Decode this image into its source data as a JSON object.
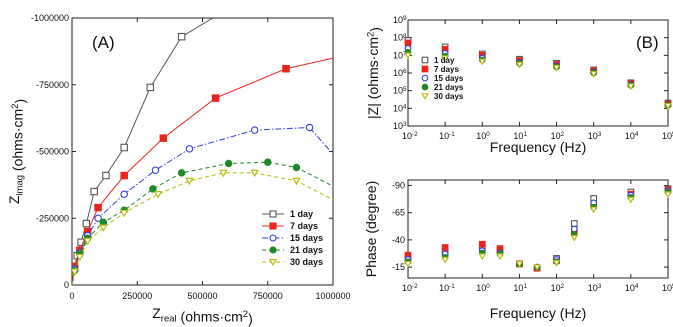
{
  "chart_data": [
    {
      "panel": "A",
      "type": "scatter",
      "panel_label": "(A)",
      "xlabel": {
        "main": "Z",
        "sub": "real",
        "unit": " (ohms·cm",
        "sup": "2",
        "close": ")"
      },
      "ylabel": {
        "main": "Z",
        "sub": "imag",
        "unit": " (ohms·cm",
        "sup": "2",
        "close": ")"
      },
      "xlim": [
        0,
        1000000
      ],
      "ylim": [
        0,
        -1000000
      ],
      "x_ticks": [
        0,
        250000,
        500000,
        750000,
        1000000
      ],
      "x_tick_labels": [
        "0",
        "250000",
        "500000",
        "750000",
        "1000000"
      ],
      "y_ticks": [
        0,
        -250000,
        -500000,
        -750000,
        -1000000
      ],
      "y_tick_labels": [
        "0",
        "-250000",
        "-500000",
        "-750000",
        "-1000000"
      ],
      "legend_position": "lower-right",
      "series": [
        {
          "name": "1 day",
          "color": "#555555",
          "marker": "square-open",
          "line": "solid",
          "x": [
            0,
            10000,
            20000,
            35000,
            55000,
            85000,
            130000,
            200000,
            300000,
            420000,
            540000
          ],
          "y": [
            0,
            -65000,
            -110000,
            -160000,
            -230000,
            -350000,
            -410000,
            -515000,
            -740000,
            -930000,
            -1000000
          ]
        },
        {
          "name": "7 days",
          "color": "#e8251c",
          "marker": "square-filled",
          "line": "solid",
          "x": [
            0,
            10000,
            30000,
            60000,
            100000,
            200000,
            350000,
            550000,
            820000,
            1000000
          ],
          "y": [
            0,
            -70000,
            -130000,
            -200000,
            -290000,
            -410000,
            -550000,
            -700000,
            -810000,
            -850000
          ]
        },
        {
          "name": "15 days",
          "color": "#3340e0",
          "marker": "circle-open",
          "line": "dashdot",
          "x": [
            0,
            10000,
            30000,
            60000,
            100000,
            200000,
            320000,
            450000,
            700000,
            910000,
            1000000
          ],
          "y": [
            0,
            -60000,
            -120000,
            -185000,
            -250000,
            -340000,
            -430000,
            -510000,
            -580000,
            -590000,
            -490000
          ]
        },
        {
          "name": "21 days",
          "color": "#1c8a28",
          "marker": "circle-filled",
          "line": "dashed",
          "x": [
            0,
            10000,
            30000,
            60000,
            120000,
            200000,
            310000,
            420000,
            600000,
            750000,
            860000,
            1000000
          ],
          "y": [
            0,
            -55000,
            -115000,
            -175000,
            -235000,
            -280000,
            -360000,
            -420000,
            -455000,
            -460000,
            -440000,
            -370000
          ]
        },
        {
          "name": "30 days",
          "color": "#b8b800",
          "marker": "triangle-open",
          "line": "dashed",
          "x": [
            0,
            10000,
            30000,
            60000,
            120000,
            200000,
            330000,
            450000,
            580000,
            700000,
            860000,
            1000000
          ],
          "y": [
            0,
            -50000,
            -105000,
            -165000,
            -215000,
            -270000,
            -340000,
            -390000,
            -420000,
            -420000,
            -390000,
            -320000
          ]
        }
      ]
    },
    {
      "panel": "B-top",
      "type": "scatter",
      "panel_label": "(B)",
      "xlabel": "Frequency (Hz)",
      "ylabel": {
        "main": "|Z| (ohms·cm",
        "sup": "2",
        "close": ")"
      },
      "x_scale": "log",
      "y_scale": "log",
      "xlim": [
        0.01,
        100000
      ],
      "ylim": [
        1000,
        1000000000
      ],
      "x_ticks": [
        0.01,
        0.1,
        1,
        10,
        100,
        1000,
        10000,
        100000
      ],
      "x_tick_labels": [
        {
          "b": "10",
          "e": "-2"
        },
        {
          "b": "10",
          "e": "-1"
        },
        {
          "b": "10",
          "e": "0"
        },
        {
          "b": "10",
          "e": "1"
        },
        {
          "b": "10",
          "e": "2"
        },
        {
          "b": "10",
          "e": "3"
        },
        {
          "b": "10",
          "e": "4"
        },
        {
          "b": "10",
          "e": "5"
        }
      ],
      "y_ticks": [
        1000,
        10000,
        100000,
        1000000,
        10000000,
        100000000,
        1000000000
      ],
      "y_tick_labels": [
        {
          "b": "10",
          "e": "3"
        },
        {
          "b": "10",
          "e": "4"
        },
        {
          "b": "10",
          "e": "5"
        },
        {
          "b": "10",
          "e": "6"
        },
        {
          "b": "10",
          "e": "7"
        },
        {
          "b": "10",
          "e": "8"
        },
        {
          "b": "10",
          "e": "9"
        }
      ],
      "legend_position": "left-middle",
      "series": [
        {
          "name": "1 day",
          "color": "#555555",
          "marker": "square-open",
          "x": [
            0.01,
            0.1,
            1,
            10,
            100,
            1000,
            10000,
            100000
          ],
          "y": [
            70000000,
            30000000,
            12000000,
            6000000,
            3500000,
            1500000,
            280000,
            20000
          ]
        },
        {
          "name": "7 days",
          "color": "#e8251c",
          "marker": "square-filled",
          "x": [
            0.01,
            0.1,
            1,
            10,
            100,
            1000,
            10000,
            100000
          ],
          "y": [
            50000000,
            22000000,
            10000000,
            5000000,
            3000000,
            1300000,
            250000,
            18000
          ]
        },
        {
          "name": "15 days",
          "color": "#3340e0",
          "marker": "circle-open",
          "x": [
            0.01,
            0.1,
            1,
            10,
            100,
            1000,
            10000,
            100000
          ],
          "y": [
            25000000,
            13000000,
            7000000,
            4000000,
            2500000,
            1100000,
            220000,
            16000
          ]
        },
        {
          "name": "21 days",
          "color": "#1c8a28",
          "marker": "circle-filled",
          "x": [
            0.01,
            0.1,
            1,
            10,
            100,
            1000,
            10000,
            100000
          ],
          "y": [
            15000000,
            9000000,
            5500000,
            3500000,
            2200000,
            1000000,
            200000,
            15000
          ]
        },
        {
          "name": "30 days",
          "color": "#b8b800",
          "marker": "triangle-open",
          "x": [
            0.01,
            0.1,
            1,
            10,
            100,
            1000,
            10000,
            100000
          ],
          "y": [
            10000000,
            7000000,
            4500000,
            3000000,
            2000000,
            900000,
            180000,
            14000
          ]
        }
      ]
    },
    {
      "panel": "B-bottom",
      "type": "scatter",
      "xlabel": "Frequency (Hz)",
      "ylabel": "Phase (degree)",
      "x_scale": "log",
      "xlim": [
        0.01,
        100000
      ],
      "ylim": [
        0,
        -90
      ],
      "x_ticks": [
        0.01,
        0.1,
        1,
        10,
        100,
        1000,
        10000,
        100000
      ],
      "x_tick_labels": [
        {
          "b": "10",
          "e": "-2"
        },
        {
          "b": "10",
          "e": "-1"
        },
        {
          "b": "10",
          "e": "0"
        },
        {
          "b": "10",
          "e": "1"
        },
        {
          "b": "10",
          "e": "2"
        },
        {
          "b": "10",
          "e": "3"
        },
        {
          "b": "10",
          "e": "4"
        },
        {
          "b": "10",
          "e": "5"
        }
      ],
      "y_ticks": [
        -15,
        -40,
        -65,
        -90
      ],
      "y_tick_labels": [
        "-15",
        "-40",
        "-65",
        "-90"
      ],
      "series": [
        {
          "name": "1 day",
          "color": "#555555",
          "marker": "square-open",
          "x": [
            0.01,
            0.1,
            1,
            3,
            10,
            30,
            100,
            300,
            1000,
            10000,
            100000
          ],
          "y": [
            -22,
            -28,
            -33,
            -30,
            -18,
            -14,
            -23,
            -55,
            -78,
            -84,
            -87
          ]
        },
        {
          "name": "7 days",
          "color": "#e8251c",
          "marker": "square-filled",
          "x": [
            0.01,
            0.1,
            1,
            3,
            10,
            30,
            100,
            300,
            1000,
            10000,
            100000
          ],
          "y": [
            -26,
            -33,
            -36,
            -32,
            -18,
            -14,
            -21,
            -48,
            -72,
            -82,
            -86
          ]
        },
        {
          "name": "15 days",
          "color": "#3340e0",
          "marker": "circle-open",
          "x": [
            0.01,
            0.1,
            1,
            3,
            10,
            30,
            100,
            300,
            1000,
            10000,
            100000
          ],
          "y": [
            -22,
            -27,
            -30,
            -28,
            -18,
            -15,
            -22,
            -50,
            -74,
            -81,
            -85
          ]
        },
        {
          "name": "21 days",
          "color": "#1c8a28",
          "marker": "circle-filled",
          "x": [
            0.01,
            0.1,
            1,
            3,
            10,
            30,
            100,
            300,
            1000,
            10000,
            100000
          ],
          "y": [
            -20,
            -24,
            -28,
            -27,
            -18,
            -15,
            -20,
            -45,
            -70,
            -79,
            -84
          ]
        },
        {
          "name": "30 days",
          "color": "#b8b800",
          "marker": "triangle-open",
          "x": [
            0.01,
            0.1,
            1,
            3,
            10,
            30,
            100,
            300,
            1000,
            10000,
            100000
          ],
          "y": [
            -18,
            -22,
            -25,
            -25,
            -18,
            -15,
            -19,
            -42,
            -68,
            -77,
            -82
          ]
        }
      ]
    }
  ]
}
